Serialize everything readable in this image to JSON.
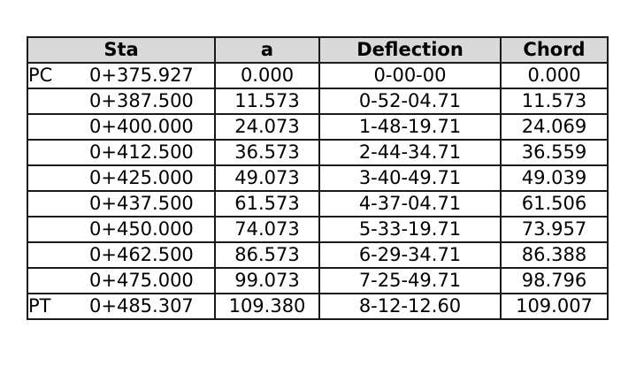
{
  "table": {
    "headers": {
      "sta": "Sta",
      "a": "a",
      "deflection": "Deflection",
      "chord": "Chord"
    },
    "rows": [
      {
        "point": "PC",
        "sta": "0+375.927",
        "a": "0.000",
        "deflection": "0-00-00",
        "chord": "0.000"
      },
      {
        "point": "",
        "sta": "0+387.500",
        "a": "11.573",
        "deflection": "0-52-04.71",
        "chord": "11.573"
      },
      {
        "point": "",
        "sta": "0+400.000",
        "a": "24.073",
        "deflection": "1-48-19.71",
        "chord": "24.069"
      },
      {
        "point": "",
        "sta": "0+412.500",
        "a": "36.573",
        "deflection": "2-44-34.71",
        "chord": "36.559"
      },
      {
        "point": "",
        "sta": "0+425.000",
        "a": "49.073",
        "deflection": "3-40-49.71",
        "chord": "49.039"
      },
      {
        "point": "",
        "sta": "0+437.500",
        "a": "61.573",
        "deflection": "4-37-04.71",
        "chord": "61.506"
      },
      {
        "point": "",
        "sta": "0+450.000",
        "a": "74.073",
        "deflection": "5-33-19.71",
        "chord": "73.957"
      },
      {
        "point": "",
        "sta": "0+462.500",
        "a": "86.573",
        "deflection": "6-29-34.71",
        "chord": "86.388"
      },
      {
        "point": "",
        "sta": "0+475.000",
        "a": "99.073",
        "deflection": "7-25-49.71",
        "chord": "98.796"
      },
      {
        "point": "PT",
        "sta": "0+485.307",
        "a": "109.380",
        "deflection": "8-12-12.60",
        "chord": "109.007"
      }
    ]
  },
  "colors": {
    "header_background": "#d9d9d9",
    "border": "#1a1a1a"
  }
}
